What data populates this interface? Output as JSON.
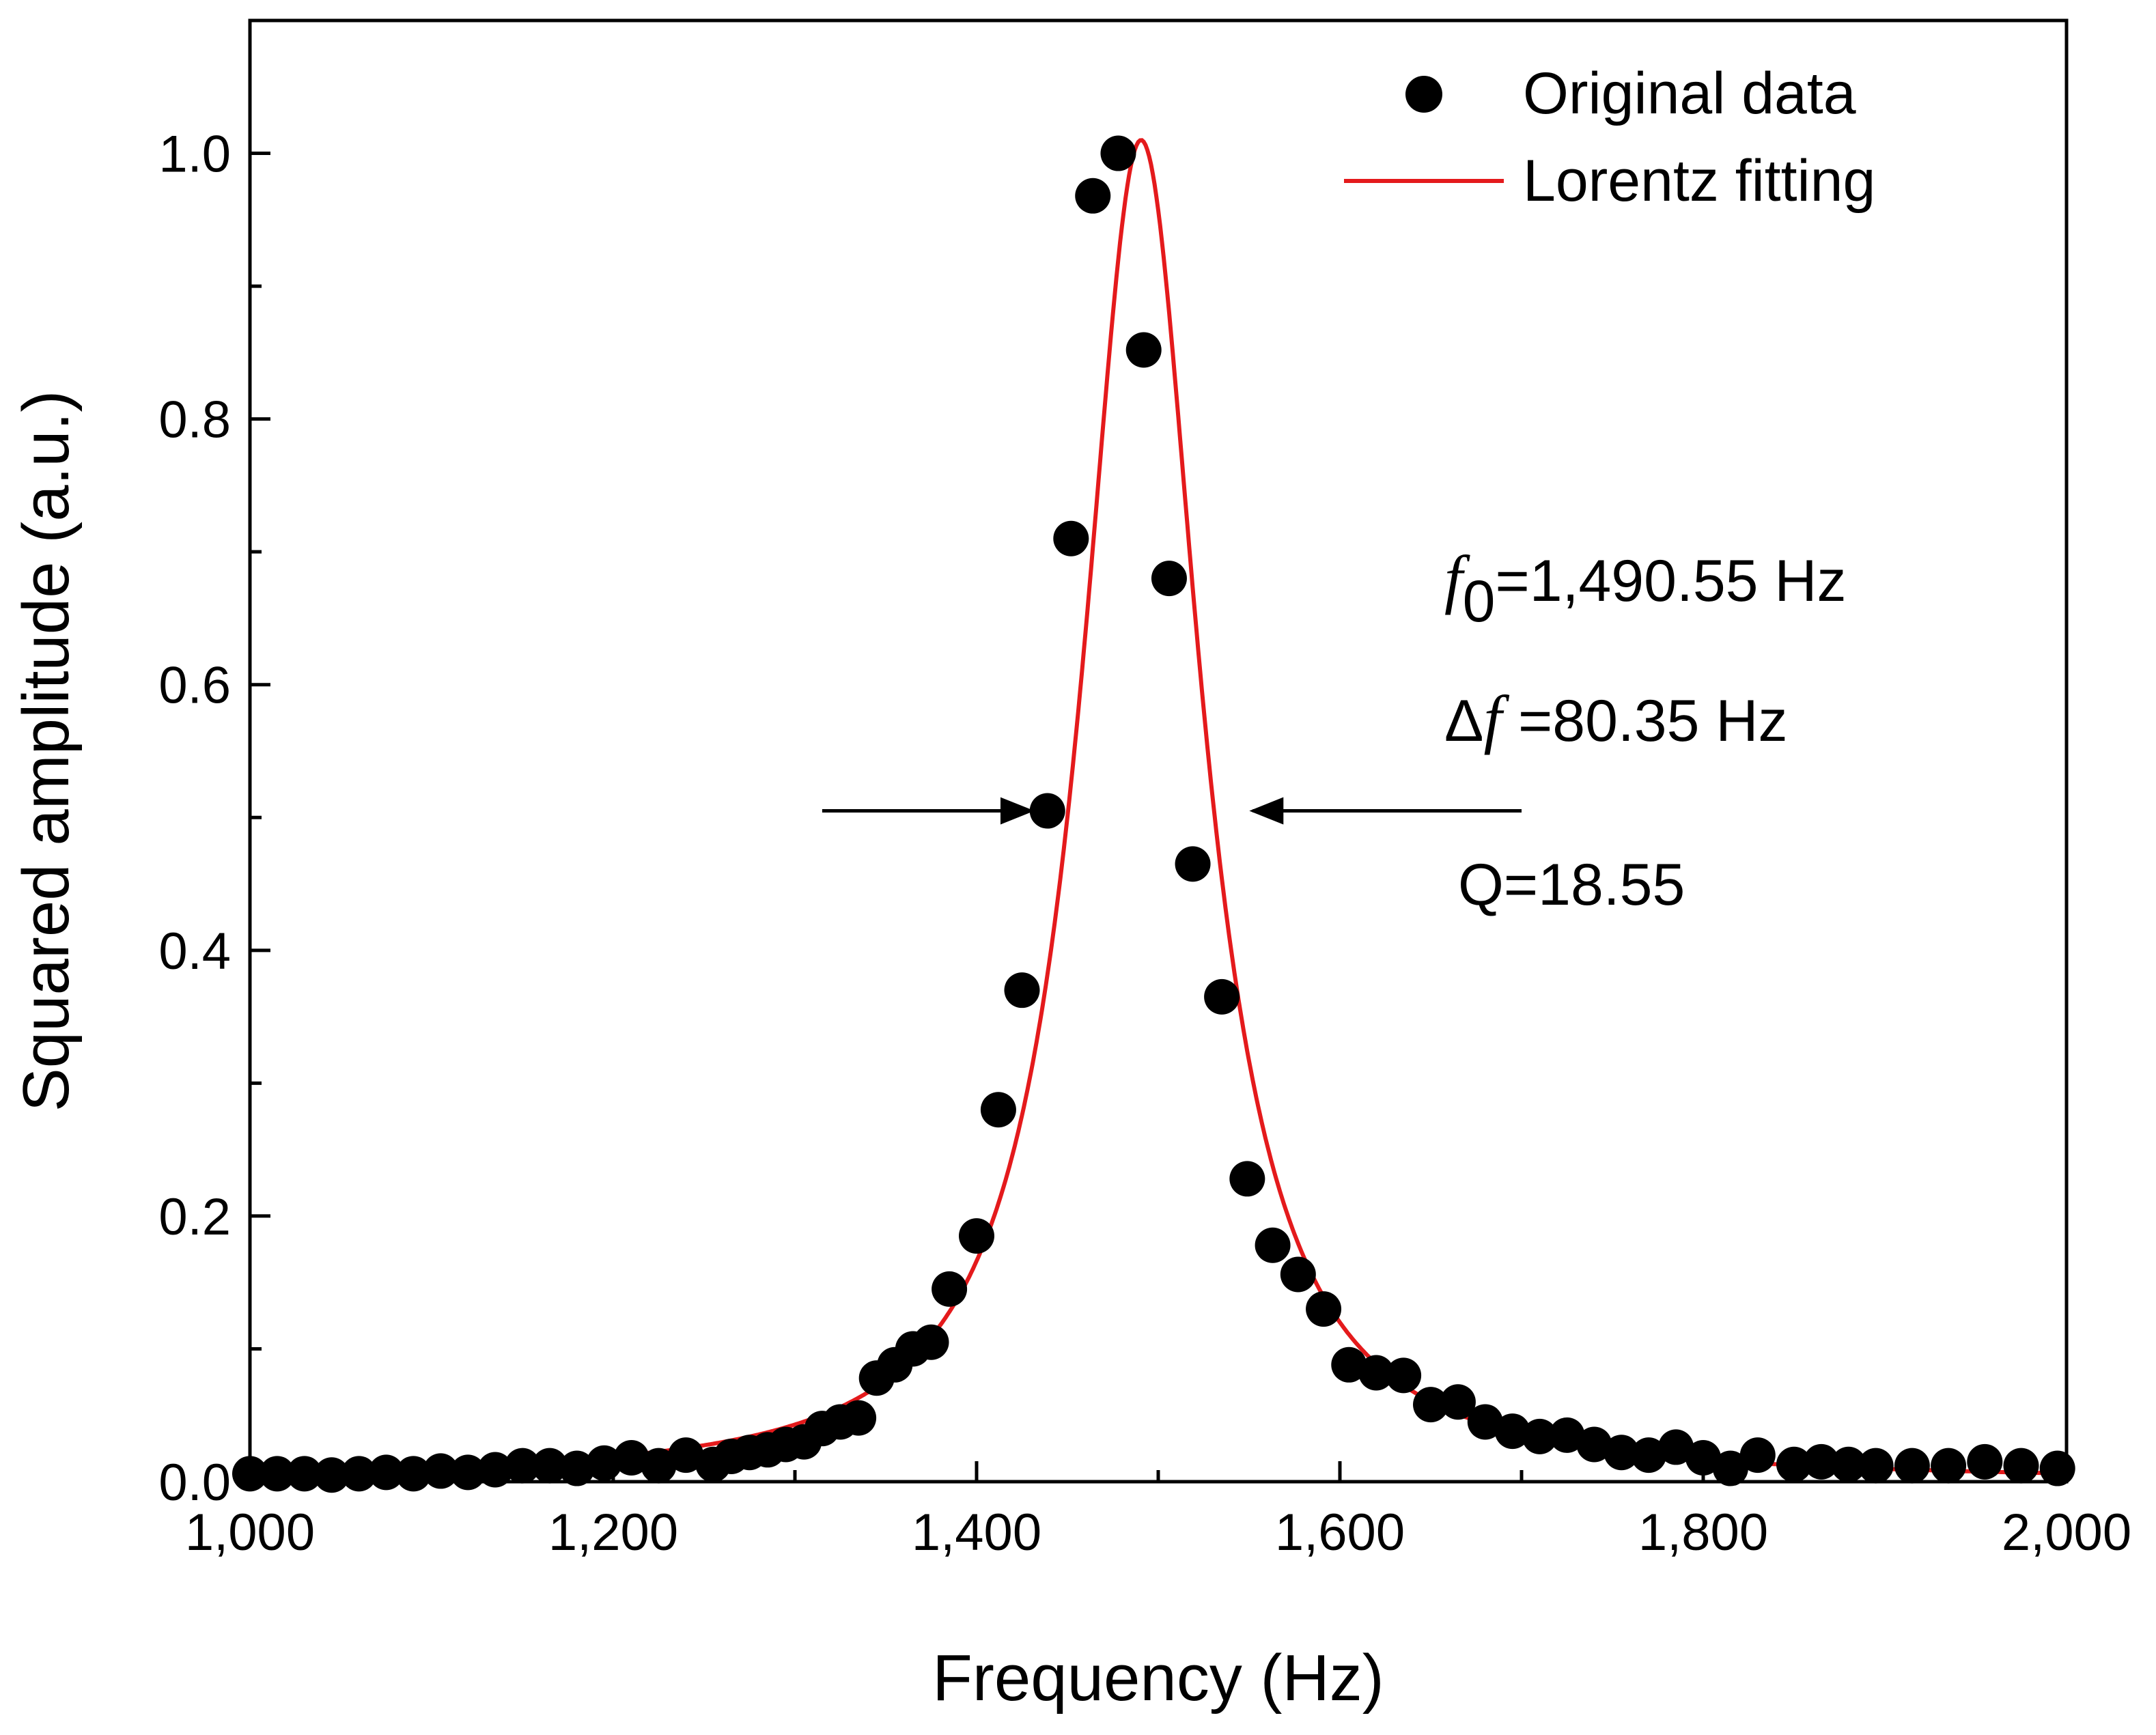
{
  "chart_data": {
    "type": "scatter",
    "title": "",
    "xlabel": "Frequency (Hz)",
    "ylabel": "Squared amplitude (a.u.)",
    "xlim": [
      1000,
      2000
    ],
    "ylim": [
      0,
      1.1
    ],
    "x_ticks": [
      1000,
      1200,
      1400,
      1600,
      1800,
      2000
    ],
    "x_tick_labels": [
      "1,000",
      "1,200",
      "1,400",
      "1,600",
      "1,800",
      "2,000"
    ],
    "y_ticks": [
      0.0,
      0.2,
      0.4,
      0.6,
      0.8,
      1.0
    ],
    "y_tick_labels": [
      "0.0",
      "0.2",
      "0.4",
      "0.6",
      "0.8",
      "1.0"
    ],
    "grid": false,
    "legend_position": "top-right",
    "colors": {
      "data": "#000000",
      "fit": "#e41a1c"
    },
    "series": [
      {
        "name": "Original data",
        "kind": "scatter",
        "x": [
          1000,
          1015,
          1030,
          1045,
          1060,
          1075,
          1090,
          1105,
          1120,
          1135,
          1150,
          1165,
          1180,
          1195,
          1210,
          1225,
          1240,
          1255,
          1265,
          1275,
          1285,
          1295,
          1305,
          1315,
          1325,
          1335,
          1345,
          1355,
          1365,
          1375,
          1385,
          1400,
          1412,
          1425,
          1439,
          1452,
          1464,
          1478,
          1492,
          1506,
          1519,
          1535,
          1549,
          1563,
          1577,
          1591,
          1605,
          1620,
          1635,
          1650,
          1665,
          1680,
          1695,
          1710,
          1725,
          1740,
          1755,
          1770,
          1785,
          1800,
          1815,
          1830,
          1850,
          1865,
          1880,
          1895,
          1915,
          1935,
          1955,
          1975,
          1995
        ],
        "y": [
          0.006,
          0.006,
          0.006,
          0.005,
          0.006,
          0.007,
          0.006,
          0.008,
          0.007,
          0.009,
          0.012,
          0.012,
          0.01,
          0.014,
          0.018,
          0.012,
          0.02,
          0.013,
          0.019,
          0.022,
          0.024,
          0.028,
          0.03,
          0.04,
          0.045,
          0.048,
          0.078,
          0.088,
          0.1,
          0.105,
          0.145,
          0.185,
          0.28,
          0.37,
          0.505,
          0.71,
          0.968,
          1.0,
          0.852,
          0.68,
          0.465,
          0.365,
          0.228,
          0.178,
          0.156,
          0.13,
          0.088,
          0.082,
          0.08,
          0.058,
          0.06,
          0.045,
          0.038,
          0.034,
          0.035,
          0.028,
          0.022,
          0.02,
          0.026,
          0.018,
          0.01,
          0.02,
          0.013,
          0.015,
          0.013,
          0.012,
          0.012,
          0.012,
          0.015,
          0.012,
          0.01
        ]
      },
      {
        "name": "Lorentz fitting",
        "kind": "line",
        "model": "lorentz",
        "x0": 1490.55,
        "fwhm": 80.35,
        "amplitude": 1.01,
        "baseline": 0.0
      }
    ],
    "annotations": {
      "f0_symbol": "f",
      "f0_sub": "0",
      "f0_text": "=1,490.55 Hz",
      "df_delta": "Δ",
      "df_symbol": "f",
      "df_text": " =80.35 Hz",
      "q_text": "Q=18.55",
      "arrows": [
        {
          "from_x": 1315,
          "to_x": 1430,
          "y": 0.505
        },
        {
          "from_x": 1700,
          "to_x": 1552,
          "y": 0.505
        }
      ]
    }
  }
}
